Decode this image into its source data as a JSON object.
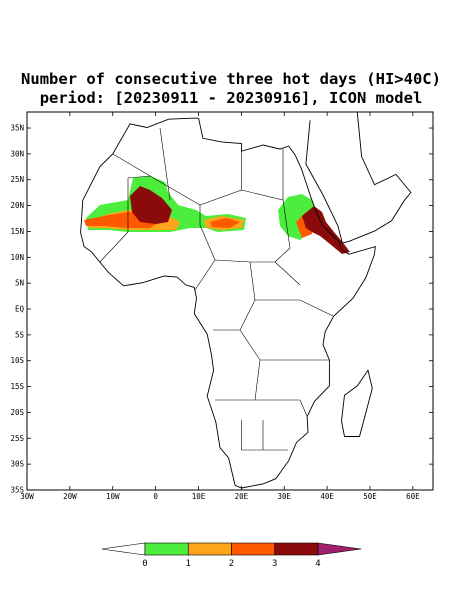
{
  "title": [
    "Number of consecutive three hot days (HI>40C)",
    "period: [20230911 - 20230916], ICON model"
  ],
  "map": {
    "latlim": [
      -35,
      38.1
    ],
    "lonlim": [
      -30,
      64.7
    ],
    "lat_ticks": [
      {
        "value": 35,
        "label": "35N"
      },
      {
        "value": 30,
        "label": "30N"
      },
      {
        "value": 25,
        "label": "25N"
      },
      {
        "value": 20,
        "label": "20N"
      },
      {
        "value": 15,
        "label": "15N"
      },
      {
        "value": 10,
        "label": "10N"
      },
      {
        "value": 5,
        "label": "5N"
      },
      {
        "value": 0,
        "label": "EQ"
      },
      {
        "value": -5,
        "label": "5S"
      },
      {
        "value": -10,
        "label": "10S"
      },
      {
        "value": -15,
        "label": "15S"
      },
      {
        "value": -20,
        "label": "20S"
      },
      {
        "value": -25,
        "label": "25S"
      },
      {
        "value": -30,
        "label": "30S"
      },
      {
        "value": -35,
        "label": "35S"
      }
    ],
    "lon_ticks": [
      {
        "value": -30,
        "label": "30W"
      },
      {
        "value": -20,
        "label": "20W"
      },
      {
        "value": -10,
        "label": "10W"
      },
      0,
      {
        "value": 10,
        "label": "10E"
      },
      {
        "value": 20,
        "label": "20E"
      },
      {
        "value": 30,
        "label": "30E"
      },
      {
        "value": 40,
        "label": "40E"
      },
      {
        "value": 50,
        "label": "50E"
      },
      {
        "value": 60,
        "label": "60E"
      }
    ]
  },
  "colorbar": {
    "levels": [
      0,
      1,
      2,
      3,
      4
    ],
    "colors": [
      "#ffffff",
      "#4ced3c",
      "#ffa519",
      "#ff5a00",
      "#8b0a0a",
      "#a0206e"
    ]
  }
}
